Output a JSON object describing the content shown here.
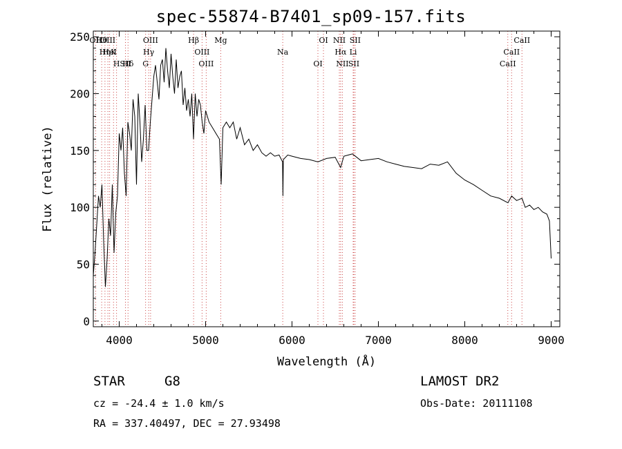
{
  "title": "spec-55874-B7401_sp09-157.fits",
  "info": {
    "class_label": "STAR",
    "subclass": "G8",
    "cz": "cz = -24.4 ± 1.0 km/s",
    "coords": "RA = 337.40497, DEC =  27.93498",
    "survey": "LAMOST DR2",
    "obs_date": "Obs-Date: 20111108"
  },
  "chart_data": {
    "type": "line",
    "title": "spec-55874-B7401_sp09-157.fits",
    "xlabel": "Wavelength (Å)",
    "ylabel": "Flux (relative)",
    "xlim": [
      3700,
      9100
    ],
    "ylim": [
      -5,
      255
    ],
    "xticks": [
      4000,
      5000,
      6000,
      7000,
      8000,
      9000
    ],
    "yticks": [
      0,
      50,
      100,
      150,
      200,
      250
    ],
    "grid": false,
    "line_color": "#000000",
    "marker_color": "#cc4444",
    "series": [
      {
        "x": [
          3700,
          3720,
          3740,
          3760,
          3780,
          3800,
          3820,
          3840,
          3860,
          3880,
          3900,
          3920,
          3940,
          3960,
          3980,
          4000,
          4020,
          4040,
          4060,
          4080,
          4100,
          4120,
          4140,
          4160,
          4180,
          4200,
          4220,
          4240,
          4260,
          4280,
          4300,
          4320,
          4340,
          4360,
          4380,
          4400,
          4420,
          4440,
          4460,
          4480,
          4500,
          4520,
          4540,
          4560,
          4580,
          4600,
          4620,
          4640,
          4660,
          4680,
          4700,
          4720,
          4740,
          4760,
          4780,
          4800,
          4820,
          4840,
          4860,
          4880,
          4900,
          4920,
          4940,
          4960,
          4980,
          5000,
          5040,
          5080,
          5120,
          5160,
          5180,
          5200,
          5240,
          5280,
          5320,
          5360,
          5400,
          5450,
          5500,
          5550,
          5600,
          5650,
          5700,
          5750,
          5800,
          5850,
          5890,
          5895,
          5900,
          5950,
          6000,
          6100,
          6200,
          6300,
          6400,
          6500,
          6563,
          6600,
          6700,
          6800,
          6900,
          7000,
          7100,
          7200,
          7300,
          7400,
          7500,
          7600,
          7700,
          7800,
          7900,
          8000,
          8100,
          8200,
          8300,
          8400,
          8500,
          8542,
          8600,
          8662,
          8700,
          8750,
          8800,
          8850,
          8900,
          8950,
          8980,
          9000
        ],
        "values": [
          40,
          60,
          85,
          110,
          100,
          120,
          70,
          30,
          55,
          90,
          75,
          120,
          60,
          95,
          110,
          165,
          150,
          170,
          130,
          110,
          175,
          165,
          150,
          195,
          180,
          120,
          200,
          175,
          140,
          160,
          190,
          150,
          150,
          175,
          195,
          215,
          225,
          210,
          195,
          225,
          230,
          210,
          240,
          220,
          205,
          235,
          215,
          200,
          230,
          205,
          215,
          220,
          190,
          205,
          185,
          195,
          180,
          200,
          160,
          200,
          180,
          195,
          190,
          175,
          165,
          185,
          175,
          170,
          165,
          160,
          120,
          170,
          175,
          170,
          175,
          160,
          170,
          155,
          160,
          150,
          155,
          148,
          145,
          148,
          145,
          146,
          140,
          110,
          142,
          146,
          145,
          143,
          142,
          140,
          143,
          144,
          135,
          145,
          147,
          141,
          142,
          143,
          140,
          138,
          136,
          135,
          134,
          138,
          137,
          140,
          130,
          124,
          120,
          115,
          110,
          108,
          104,
          110,
          106,
          108,
          100,
          102,
          98,
          100,
          96,
          94,
          88,
          55
        ]
      }
    ],
    "line_markers": [
      {
        "label": "Hθ",
        "x": 3797
      },
      {
        "label": "K",
        "x": 3934
      },
      {
        "label": "Hδ",
        "x": 4102
      },
      {
        "label": "OII",
        "x": 3727
      },
      {
        "label": "HeI",
        "x": 3889
      },
      {
        "label": "SII",
        "x": 4072
      },
      {
        "label": "OIII",
        "x": 3869
      },
      {
        "label": "Hη",
        "x": 3835
      },
      {
        "label": "H",
        "x": 3969
      },
      {
        "label": "OIII",
        "x": 4363
      },
      {
        "label": "Hγ",
        "x": 4341
      },
      {
        "label": "G",
        "x": 4305
      },
      {
        "label": "Hβ",
        "x": 4861
      },
      {
        "label": "OIII",
        "x": 4959
      },
      {
        "label": "OIII",
        "x": 5007
      },
      {
        "label": "Mg",
        "x": 5175
      },
      {
        "label": "Na",
        "x": 5893
      },
      {
        "label": "OI",
        "x": 6300
      },
      {
        "label": "OI",
        "x": 6364
      },
      {
        "label": "Hα",
        "x": 6563
      },
      {
        "label": "SII",
        "x": 6716
      },
      {
        "label": "NII",
        "x": 6548
      },
      {
        "label": "Li",
        "x": 6708
      },
      {
        "label": "NII",
        "x": 6583
      },
      {
        "label": "SII",
        "x": 6731
      },
      {
        "label": "CaII",
        "x": 8542
      },
      {
        "label": "CaII",
        "x": 8498
      },
      {
        "label": "CaII",
        "x": 8662
      }
    ]
  }
}
